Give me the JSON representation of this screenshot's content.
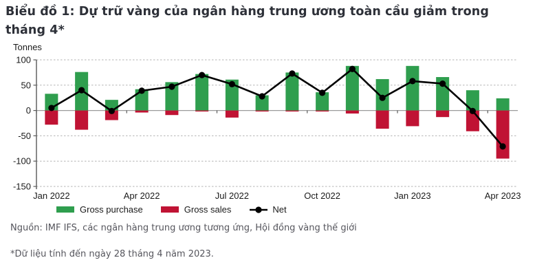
{
  "page": {
    "title": "Biểu đồ 1: Dự trữ vàng của ngân hàng trung ương toàn cầu giảm trong tháng 4*",
    "source": "Nguồn: IMF IFS, các ngân hàng trung ương tương ứng, Hội đồng vàng thế giới",
    "footnote": "*Dữ liệu tính đến ngày 28 tháng 4 năm 2023."
  },
  "chart": {
    "unit_label": "Tonnes",
    "legend": [
      {
        "label": "Gross purchase",
        "type": "swatch",
        "color": "#2f9e4e"
      },
      {
        "label": "Gross sales",
        "type": "swatch",
        "color": "#c01334"
      },
      {
        "label": "Net",
        "type": "line-dot",
        "color": "#000000"
      }
    ]
  },
  "chart_data": {
    "type": "bar",
    "subtype": "bar+line-combo",
    "title": "Biểu đồ 1: Dự trữ vàng của ngân hàng trung ương toàn cầu giảm trong tháng 4*",
    "ylabel": "Tonnes",
    "xlabel": "",
    "ylim": [
      -150,
      100
    ],
    "ytick_interval": 50,
    "yticks": [
      100,
      50,
      0,
      -50,
      -100,
      -150
    ],
    "grid": "dashed-horizontal",
    "legend_position": "bottom-left",
    "categories": [
      "Jan 2022",
      "Feb 2022",
      "Mar 2022",
      "Apr 2022",
      "May 2022",
      "Jun 2022",
      "Jul 2022",
      "Aug 2022",
      "Sep 2022",
      "Oct 2022",
      "Nov 2022",
      "Dec 2022",
      "Jan 2023",
      "Feb 2023",
      "Mar 2023",
      "Apr 2023"
    ],
    "xticks_shown": [
      "Jan 2022",
      "Apr 2022",
      "Jul 2022",
      "Oct 2022",
      "Jan 2023",
      "Apr 2023"
    ],
    "xtick_every": 3,
    "series": [
      {
        "name": "Gross purchase",
        "type": "bar",
        "color": "#2f9e4e",
        "values": [
          33,
          76,
          21,
          42,
          56,
          72,
          61,
          30,
          75,
          36,
          88,
          62,
          88,
          66,
          40,
          24
        ]
      },
      {
        "name": "Gross sales",
        "type": "bar",
        "color": "#c01334",
        "values": [
          -28,
          -38,
          -19,
          -4,
          -9,
          -2,
          -14,
          -2,
          -2,
          -2,
          -6,
          -36,
          -31,
          -13,
          -41,
          -95
        ]
      },
      {
        "name": "Net",
        "type": "line",
        "color": "#000000",
        "values": [
          5,
          40,
          -1,
          39,
          47,
          70,
          52,
          28,
          73,
          35,
          82,
          25,
          58,
          53,
          -1,
          -71
        ]
      }
    ]
  }
}
